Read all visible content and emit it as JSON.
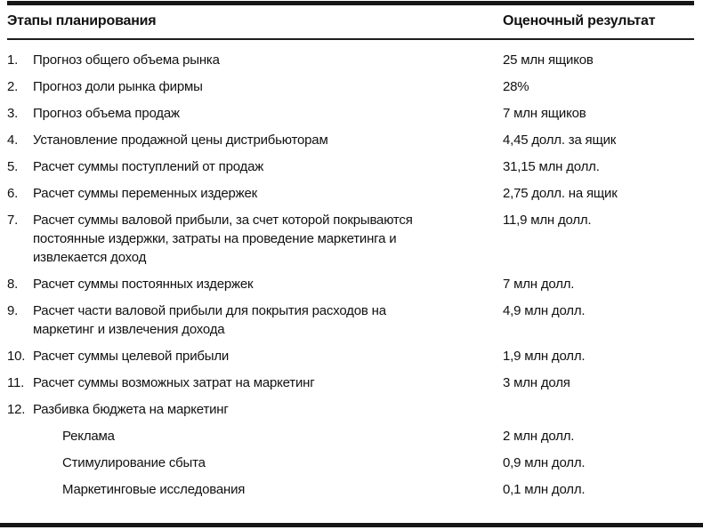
{
  "table": {
    "columns": [
      "Этапы планирования",
      "Оценочный результат"
    ],
    "rows": [
      {
        "num": "1.",
        "label": "Прогноз общего объема рынка",
        "value": "25 млн ящиков",
        "indent": false
      },
      {
        "num": "2.",
        "label": "Прогноз доли рынка фирмы",
        "value": "28%",
        "indent": false
      },
      {
        "num": "3.",
        "label": "Прогноз объема продаж",
        "value": "7 млн ящиков",
        "indent": false
      },
      {
        "num": "4.",
        "label": "Установление продажной цены дистрибьюторам",
        "value": "4,45 долл. за ящик",
        "indent": false
      },
      {
        "num": "5.",
        "label": "Расчет суммы поступлений от продаж",
        "value": "31,15 млн долл.",
        "indent": false
      },
      {
        "num": "6.",
        "label": "Расчет суммы переменных издержек",
        "value": "2,75 долл. на ящик",
        "indent": false
      },
      {
        "num": "7.",
        "label": "Расчет суммы валовой прибыли, за счет которой покрываются постоянные издержки, затраты на проведение маркетинга и извлекается доход",
        "value": "11,9 млн долл.",
        "indent": false
      },
      {
        "num": "8.",
        "label": "Расчет суммы постоянных издержек",
        "value": "7 млн долл.",
        "indent": false
      },
      {
        "num": "9.",
        "label": "Расчет части валовой прибыли для покрытия расходов на маркетинг и извлечения дохода",
        "value": "4,9 млн долл.",
        "indent": false
      },
      {
        "num": "10.",
        "label": "Расчет суммы целевой прибыли",
        "value": "1,9 млн долл.",
        "indent": false
      },
      {
        "num": "11.",
        "label": "Расчет суммы возможных затрат на маркетинг",
        "value": "3 млн доля",
        "indent": false
      },
      {
        "num": "12.",
        "label": "Разбивка бюджета на маркетинг",
        "value": "",
        "indent": false
      },
      {
        "num": "",
        "label": "Реклама",
        "value": "2 млн долл.",
        "indent": true
      },
      {
        "num": "",
        "label": "Стимулирование сбыта",
        "value": "0,9 млн долл.",
        "indent": true
      },
      {
        "num": "",
        "label": "Маркетинговые исследования",
        "value": "0,1 млн долл.",
        "indent": true
      }
    ]
  }
}
